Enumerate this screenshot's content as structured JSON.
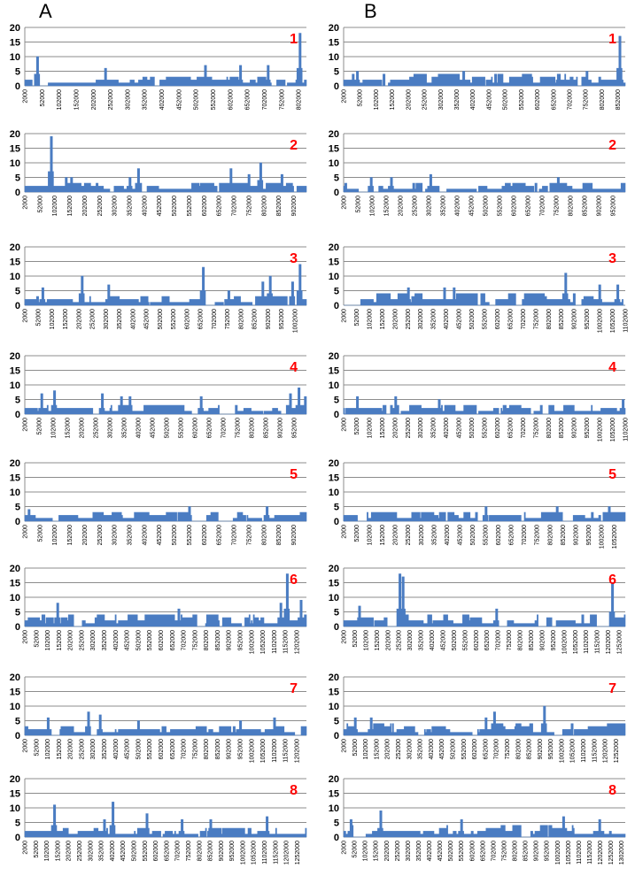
{
  "columns": [
    {
      "label": "A"
    },
    {
      "label": "B"
    }
  ],
  "style": {
    "bar_color": "#4a7cc2",
    "panel_label_color": "#ff0000",
    "grid_color": "#8c8c8c"
  },
  "chart_data": [
    {
      "type": "bar",
      "column": "A",
      "panel": "1",
      "title": "",
      "xlabel": "",
      "ylabel": "",
      "ylim": [
        0,
        20
      ],
      "yticks": [
        0,
        5,
        10,
        15,
        20
      ],
      "grid": true,
      "x_start": 2000,
      "x_step": 50000,
      "x_end": 825000,
      "xticks": [
        "2000",
        "52000",
        "102000",
        "152000",
        "202000",
        "252000",
        "302000",
        "352000",
        "402000",
        "452000",
        "502000",
        "552000",
        "602000",
        "652000",
        "702000",
        "752000",
        "802000"
      ],
      "peaks": [
        {
          "x": 37000,
          "y": 10
        },
        {
          "x": 237000,
          "y": 6
        },
        {
          "x": 528000,
          "y": 7
        },
        {
          "x": 632000,
          "y": 7
        },
        {
          "x": 712000,
          "y": 7
        },
        {
          "x": 805000,
          "y": 18
        }
      ],
      "baseline": [
        0,
        3
      ]
    },
    {
      "type": "bar",
      "column": "B",
      "panel": "1",
      "title": "",
      "xlabel": "",
      "ylabel": "",
      "ylim": [
        0,
        20
      ],
      "yticks": [
        0,
        5,
        10,
        15,
        20
      ],
      "grid": true,
      "x_start": 2000,
      "x_step": 50000,
      "x_end": 875000,
      "xticks": [
        "2000",
        "52000",
        "102000",
        "152000",
        "202000",
        "252000",
        "302000",
        "352000",
        "402000",
        "452000",
        "502000",
        "552000",
        "602000",
        "652000",
        "702000",
        "752000",
        "802000",
        "852000"
      ],
      "peaks": [
        {
          "x": 42000,
          "y": 5
        },
        {
          "x": 372000,
          "y": 5
        },
        {
          "x": 757000,
          "y": 5
        },
        {
          "x": 857000,
          "y": 17
        }
      ],
      "baseline": [
        0,
        4
      ]
    },
    {
      "type": "bar",
      "column": "A",
      "panel": "2",
      "title": "",
      "xlabel": "",
      "ylabel": "",
      "ylim": [
        0,
        20
      ],
      "yticks": [
        0,
        5,
        10,
        15,
        20
      ],
      "grid": true,
      "x_start": 2000,
      "x_step": 50000,
      "x_end": 945000,
      "xticks": [
        "2000",
        "52000",
        "102000",
        "152000",
        "202000",
        "252000",
        "302000",
        "352000",
        "402000",
        "452000",
        "502000",
        "552000",
        "602000",
        "652000",
        "702000",
        "752000",
        "802000",
        "852000",
        "902000"
      ],
      "peaks": [
        {
          "x": 87000,
          "y": 19
        },
        {
          "x": 137000,
          "y": 5
        },
        {
          "x": 157000,
          "y": 5
        },
        {
          "x": 352000,
          "y": 5
        },
        {
          "x": 382000,
          "y": 8
        },
        {
          "x": 692000,
          "y": 8
        },
        {
          "x": 752000,
          "y": 6
        },
        {
          "x": 792000,
          "y": 10
        },
        {
          "x": 862000,
          "y": 6
        }
      ],
      "baseline": [
        0,
        3
      ]
    },
    {
      "type": "bar",
      "column": "B",
      "panel": "2",
      "title": "",
      "xlabel": "",
      "ylabel": "",
      "ylim": [
        0,
        20
      ],
      "yticks": [
        0,
        5,
        10,
        15,
        20
      ],
      "grid": true,
      "x_start": 2000,
      "x_step": 50000,
      "x_end": 995000,
      "xticks": [
        "2000",
        "52000",
        "102000",
        "152000",
        "202000",
        "252000",
        "302000",
        "352000",
        "402000",
        "452000",
        "502000",
        "552000",
        "602000",
        "652000",
        "702000",
        "752000",
        "802000",
        "852000",
        "902000",
        "952000"
      ],
      "peaks": [
        {
          "x": 97000,
          "y": 5
        },
        {
          "x": 167000,
          "y": 5
        },
        {
          "x": 307000,
          "y": 6
        },
        {
          "x": 757000,
          "y": 5
        }
      ],
      "baseline": [
        0,
        3
      ]
    },
    {
      "type": "bar",
      "column": "A",
      "panel": "3",
      "title": "",
      "xlabel": "",
      "ylabel": "",
      "ylim": [
        0,
        20
      ],
      "yticks": [
        0,
        5,
        10,
        15,
        20
      ],
      "grid": true,
      "x_start": 2000,
      "x_step": 50000,
      "x_end": 1045000,
      "xticks": [
        "2000",
        "52000",
        "102000",
        "152000",
        "202000",
        "252000",
        "302000",
        "352000",
        "402000",
        "452000",
        "502000",
        "552000",
        "602000",
        "652000",
        "702000",
        "752000",
        "802000",
        "852000",
        "902000",
        "952000",
        "1002000"
      ],
      "peaks": [
        {
          "x": 67000,
          "y": 6
        },
        {
          "x": 212000,
          "y": 10
        },
        {
          "x": 312000,
          "y": 7
        },
        {
          "x": 662000,
          "y": 13
        },
        {
          "x": 757000,
          "y": 5
        },
        {
          "x": 882000,
          "y": 8
        },
        {
          "x": 912000,
          "y": 10
        },
        {
          "x": 992000,
          "y": 8
        },
        {
          "x": 1022000,
          "y": 14
        }
      ],
      "baseline": [
        0,
        3
      ]
    },
    {
      "type": "bar",
      "column": "B",
      "panel": "3",
      "title": "",
      "xlabel": "",
      "ylabel": "",
      "ylim": [
        0,
        20
      ],
      "yticks": [
        0,
        5,
        10,
        15,
        20
      ],
      "grid": true,
      "x_start": 2000,
      "x_step": 50000,
      "x_end": 1102000,
      "xticks": [
        "2000",
        "52000",
        "102000",
        "152000",
        "202000",
        "252000",
        "302000",
        "352000",
        "402000",
        "452000",
        "502000",
        "552000",
        "602000",
        "652000",
        "702000",
        "752000",
        "802000",
        "852000",
        "902000",
        "952000",
        "1002000",
        "1052000",
        "1102000"
      ],
      "peaks": [
        {
          "x": 252000,
          "y": 6
        },
        {
          "x": 392000,
          "y": 6
        },
        {
          "x": 432000,
          "y": 6
        },
        {
          "x": 867000,
          "y": 11
        },
        {
          "x": 1002000,
          "y": 7
        },
        {
          "x": 1072000,
          "y": 7
        }
      ],
      "baseline": [
        0,
        4
      ]
    },
    {
      "type": "bar",
      "column": "A",
      "panel": "4",
      "title": "",
      "xlabel": "",
      "ylabel": "",
      "ylim": [
        0,
        20
      ],
      "yticks": [
        0,
        5,
        10,
        15,
        20
      ],
      "grid": true,
      "x_start": 2000,
      "x_step": 50000,
      "x_end": 995000,
      "xticks": [
        "2000",
        "52000",
        "102000",
        "152000",
        "202000",
        "252000",
        "302000",
        "352000",
        "402000",
        "452000",
        "502000",
        "552000",
        "602000",
        "652000",
        "702000",
        "752000",
        "802000",
        "852000",
        "902000",
        "952000"
      ],
      "peaks": [
        {
          "x": 57000,
          "y": 7
        },
        {
          "x": 102000,
          "y": 8
        },
        {
          "x": 272000,
          "y": 7
        },
        {
          "x": 342000,
          "y": 6
        },
        {
          "x": 372000,
          "y": 6
        },
        {
          "x": 622000,
          "y": 6
        },
        {
          "x": 937000,
          "y": 7
        },
        {
          "x": 967000,
          "y": 9
        },
        {
          "x": 992000,
          "y": 6
        }
      ],
      "baseline": [
        0,
        3
      ]
    },
    {
      "type": "bar",
      "column": "B",
      "panel": "4",
      "title": "",
      "xlabel": "",
      "ylabel": "",
      "ylim": [
        0,
        20
      ],
      "yticks": [
        0,
        5,
        10,
        15,
        20
      ],
      "grid": true,
      "x_start": 2000,
      "x_step": 50000,
      "x_end": 1102000,
      "xticks": [
        "2000",
        "52000",
        "102000",
        "152000",
        "202000",
        "252000",
        "302000",
        "352000",
        "402000",
        "452000",
        "502000",
        "552000",
        "602000",
        "652000",
        "702000",
        "752000",
        "802000",
        "852000",
        "902000",
        "952000",
        "1002000",
        "1052000",
        "1102000"
      ],
      "peaks": [
        {
          "x": 52000,
          "y": 6
        },
        {
          "x": 202000,
          "y": 6
        },
        {
          "x": 372000,
          "y": 5
        },
        {
          "x": 1092000,
          "y": 5
        }
      ],
      "baseline": [
        0,
        3
      ]
    },
    {
      "type": "bar",
      "column": "A",
      "panel": "5",
      "title": "",
      "xlabel": "",
      "ylabel": "",
      "ylim": [
        0,
        20
      ],
      "yticks": [
        0,
        5,
        10,
        15,
        20
      ],
      "grid": true,
      "x_start": 2000,
      "x_step": 50000,
      "x_end": 945000,
      "xticks": [
        "2000",
        "52000",
        "102000",
        "152000",
        "202000",
        "252000",
        "302000",
        "352000",
        "402000",
        "452000",
        "502000",
        "552000",
        "602000",
        "652000",
        "702000",
        "752000",
        "802000",
        "852000",
        "902000"
      ],
      "peaks": [
        {
          "x": 12000,
          "y": 4
        },
        {
          "x": 552000,
          "y": 5
        },
        {
          "x": 812000,
          "y": 5
        }
      ],
      "baseline": [
        0,
        3
      ]
    },
    {
      "type": "bar",
      "column": "B",
      "panel": "5",
      "title": "",
      "xlabel": "",
      "ylabel": "",
      "ylim": [
        0,
        20
      ],
      "yticks": [
        0,
        5,
        10,
        15,
        20
      ],
      "grid": true,
      "x_start": 2000,
      "x_step": 50000,
      "x_end": 1095000,
      "xticks": [
        "2000",
        "52000",
        "102000",
        "152000",
        "202000",
        "252000",
        "302000",
        "352000",
        "402000",
        "452000",
        "502000",
        "552000",
        "602000",
        "652000",
        "702000",
        "752000",
        "802000",
        "852000",
        "902000",
        "952000",
        "1002000",
        "1052000"
      ],
      "peaks": [
        {
          "x": 552000,
          "y": 5
        },
        {
          "x": 832000,
          "y": 5
        },
        {
          "x": 1032000,
          "y": 5
        }
      ],
      "baseline": [
        0,
        3
      ]
    },
    {
      "type": "bar",
      "column": "A",
      "panel": "6",
      "title": "",
      "xlabel": "",
      "ylabel": "",
      "ylim": [
        0,
        20
      ],
      "yticks": [
        0,
        5,
        10,
        15,
        20
      ],
      "grid": true,
      "x_start": 2000,
      "x_step": 50000,
      "x_end": 1245000,
      "xticks": [
        "2000",
        "52000",
        "102000",
        "152000",
        "202000",
        "252000",
        "302000",
        "352000",
        "402000",
        "452000",
        "502000",
        "552000",
        "602000",
        "652000",
        "702000",
        "752000",
        "802000",
        "852000",
        "902000",
        "952000",
        "1002000",
        "1052000",
        "1102000",
        "1152000",
        "1202000"
      ],
      "peaks": [
        {
          "x": 142000,
          "y": 8
        },
        {
          "x": 682000,
          "y": 6
        },
        {
          "x": 1132000,
          "y": 8
        },
        {
          "x": 1162000,
          "y": 18
        },
        {
          "x": 1222000,
          "y": 9
        }
      ],
      "baseline": [
        0,
        4
      ]
    },
    {
      "type": "bar",
      "column": "B",
      "panel": "6",
      "title": "",
      "xlabel": "",
      "ylabel": "",
      "ylim": [
        0,
        20
      ],
      "yticks": [
        0,
        5,
        10,
        15,
        20
      ],
      "grid": true,
      "x_start": 2000,
      "x_step": 50000,
      "x_end": 1280000,
      "xticks": [
        "2000",
        "52000",
        "102000",
        "152000",
        "202000",
        "252000",
        "302000",
        "352000",
        "402000",
        "452000",
        "502000",
        "552000",
        "602000",
        "652000",
        "702000",
        "752000",
        "802000",
        "852000",
        "902000",
        "952000",
        "1002000",
        "1052000",
        "1102000",
        "1152000",
        "1202000",
        "1252000"
      ],
      "peaks": [
        {
          "x": 72000,
          "y": 7
        },
        {
          "x": 252000,
          "y": 18
        },
        {
          "x": 267000,
          "y": 17
        },
        {
          "x": 692000,
          "y": 6
        },
        {
          "x": 1222000,
          "y": 15
        }
      ],
      "baseline": [
        0,
        4
      ]
    },
    {
      "type": "bar",
      "column": "A",
      "panel": "7",
      "title": "",
      "xlabel": "",
      "ylabel": "",
      "ylim": [
        0,
        20
      ],
      "yticks": [
        0,
        5,
        10,
        15,
        20
      ],
      "grid": true,
      "x_start": 2000,
      "x_step": 50000,
      "x_end": 1245000,
      "xticks": [
        "2000",
        "52000",
        "102000",
        "152000",
        "202000",
        "252000",
        "302000",
        "352000",
        "402000",
        "452000",
        "502000",
        "552000",
        "602000",
        "652000",
        "702000",
        "752000",
        "802000",
        "852000",
        "902000",
        "952000",
        "1002000",
        "1052000",
        "1102000",
        "1152000",
        "1202000"
      ],
      "peaks": [
        {
          "x": 102000,
          "y": 6
        },
        {
          "x": 282000,
          "y": 8
        },
        {
          "x": 332000,
          "y": 7
        },
        {
          "x": 502000,
          "y": 5
        },
        {
          "x": 952000,
          "y": 5
        },
        {
          "x": 1102000,
          "y": 6
        }
      ],
      "baseline": [
        0,
        3
      ]
    },
    {
      "type": "bar",
      "column": "B",
      "panel": "7",
      "title": "",
      "xlabel": "",
      "ylabel": "",
      "ylim": [
        0,
        20
      ],
      "yticks": [
        0,
        5,
        10,
        15,
        20
      ],
      "grid": true,
      "x_start": 2000,
      "x_step": 50000,
      "x_end": 1295000,
      "xticks": [
        "2000",
        "52000",
        "102000",
        "152000",
        "202000",
        "252000",
        "302000",
        "352000",
        "402000",
        "452000",
        "502000",
        "552000",
        "602000",
        "652000",
        "702000",
        "752000",
        "802000",
        "852000",
        "902000",
        "952000",
        "1002000",
        "1052000",
        "1102000",
        "1152000",
        "1202000",
        "1252000"
      ],
      "peaks": [
        {
          "x": 52000,
          "y": 6
        },
        {
          "x": 122000,
          "y": 6
        },
        {
          "x": 652000,
          "y": 6
        },
        {
          "x": 692000,
          "y": 8
        },
        {
          "x": 922000,
          "y": 10
        }
      ],
      "baseline": [
        0,
        4
      ]
    },
    {
      "type": "bar",
      "column": "A",
      "panel": "8",
      "title": "",
      "xlabel": "",
      "ylabel": "",
      "ylim": [
        0,
        20
      ],
      "yticks": [
        0,
        5,
        10,
        15,
        20
      ],
      "grid": true,
      "x_start": 2000,
      "x_step": 50000,
      "x_end": 1295000,
      "xticks": [
        "2000",
        "52000",
        "102000",
        "152000",
        "202000",
        "252000",
        "302000",
        "352000",
        "402000",
        "452000",
        "502000",
        "552000",
        "602000",
        "652000",
        "702000",
        "752000",
        "802000",
        "852000",
        "902000",
        "952000",
        "1002000",
        "1052000",
        "1102000",
        "1152000",
        "1202000",
        "1252000"
      ],
      "peaks": [
        {
          "x": 132000,
          "y": 11
        },
        {
          "x": 362000,
          "y": 6
        },
        {
          "x": 402000,
          "y": 12
        },
        {
          "x": 562000,
          "y": 8
        },
        {
          "x": 722000,
          "y": 6
        },
        {
          "x": 852000,
          "y": 6
        },
        {
          "x": 1112000,
          "y": 7
        }
      ],
      "baseline": [
        0,
        3
      ]
    },
    {
      "type": "bar",
      "column": "B",
      "panel": "8",
      "title": "",
      "xlabel": "",
      "ylabel": "",
      "ylim": [
        0,
        20
      ],
      "yticks": [
        0,
        5,
        10,
        15,
        20
      ],
      "grid": true,
      "x_start": 2000,
      "x_step": 50000,
      "x_end": 1320000,
      "xticks": [
        "2000",
        "52000",
        "102000",
        "152000",
        "202000",
        "252000",
        "302000",
        "352000",
        "402000",
        "452000",
        "502000",
        "552000",
        "602000",
        "652000",
        "702000",
        "752000",
        "802000",
        "852000",
        "902000",
        "952000",
        "1002000",
        "1052000",
        "1102000",
        "1152000",
        "1202000",
        "1252000",
        "1302000"
      ],
      "peaks": [
        {
          "x": 32000,
          "y": 6
        },
        {
          "x": 172000,
          "y": 9
        },
        {
          "x": 552000,
          "y": 6
        },
        {
          "x": 1032000,
          "y": 7
        },
        {
          "x": 1202000,
          "y": 6
        }
      ],
      "baseline": [
        0,
        4
      ]
    }
  ]
}
